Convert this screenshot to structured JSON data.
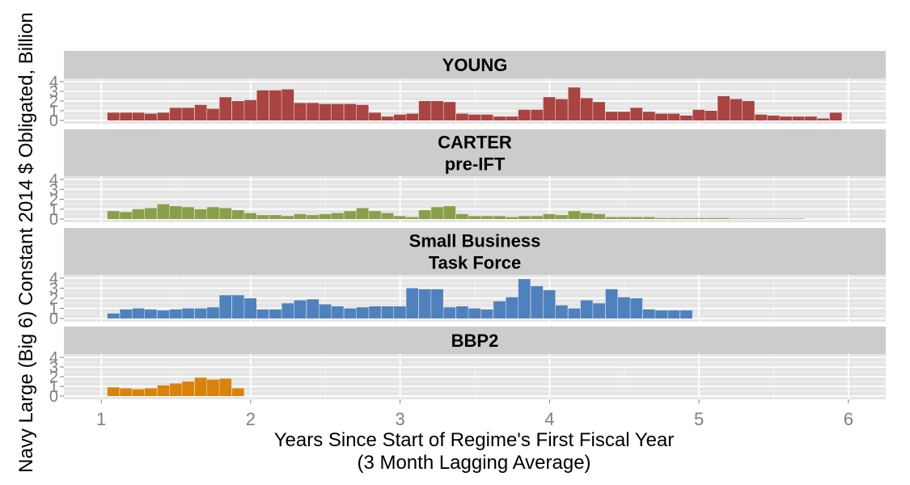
{
  "chart_data": {
    "type": "bar",
    "xlabel": "Years Since Start of Regime's First Fiscal Year",
    "xlabel_line2": "(3 Month Lagging Average)",
    "ylabel": "Navy Large (Big 6) Constant 2014 $ Obligated, Billion",
    "xlim": [
      0.75,
      6.25
    ],
    "ylim": [
      0,
      4
    ],
    "x_ticks": [
      1,
      2,
      3,
      4,
      5,
      6
    ],
    "y_ticks": [
      0,
      1,
      2,
      3,
      4
    ],
    "grid": true,
    "bin_width": 0.0833,
    "panels": [
      {
        "label": [
          "YOUNG"
        ],
        "color": "#a94442",
        "x": [
          1.083,
          1.167,
          1.25,
          1.333,
          1.417,
          1.5,
          1.583,
          1.667,
          1.75,
          1.833,
          1.917,
          2.0,
          2.083,
          2.167,
          2.25,
          2.333,
          2.417,
          2.5,
          2.583,
          2.667,
          2.75,
          2.833,
          2.917,
          3.0,
          3.083,
          3.167,
          3.25,
          3.333,
          3.417,
          3.5,
          3.583,
          3.667,
          3.75,
          3.833,
          3.917,
          4.0,
          4.083,
          4.167,
          4.25,
          4.333,
          4.417,
          4.5,
          4.583,
          4.667,
          4.75,
          4.833,
          4.917,
          5.0,
          5.083,
          5.167,
          5.25,
          5.333,
          5.417,
          5.5,
          5.583,
          5.667,
          5.75,
          5.833,
          5.917
        ],
        "values": [
          0.8,
          0.8,
          0.8,
          0.7,
          0.8,
          1.3,
          1.3,
          1.6,
          1.2,
          2.4,
          2.0,
          2.1,
          3.1,
          3.1,
          3.2,
          1.8,
          1.8,
          1.7,
          1.7,
          1.7,
          1.6,
          0.8,
          0.4,
          0.6,
          0.7,
          2.0,
          2.0,
          1.9,
          0.7,
          0.6,
          0.6,
          0.4,
          0.4,
          1.1,
          1.1,
          2.4,
          2.2,
          3.4,
          2.3,
          1.9,
          0.9,
          0.9,
          1.3,
          0.9,
          0.7,
          0.7,
          0.5,
          1.1,
          1.0,
          2.5,
          2.2,
          2.0,
          0.6,
          0.5,
          0.4,
          0.4,
          0.4,
          0.2,
          0.8
        ]
      },
      {
        "label": [
          "CARTER",
          "pre-IFT"
        ],
        "color": "#88a04a",
        "x": [
          1.083,
          1.167,
          1.25,
          1.333,
          1.417,
          1.5,
          1.583,
          1.667,
          1.75,
          1.833,
          1.917,
          2.0,
          2.083,
          2.167,
          2.25,
          2.333,
          2.417,
          2.5,
          2.583,
          2.667,
          2.75,
          2.833,
          2.917,
          3.0,
          3.083,
          3.167,
          3.25,
          3.333,
          3.417,
          3.5,
          3.583,
          3.667,
          3.75,
          3.833,
          3.917,
          4.0,
          4.083,
          4.167,
          4.25,
          4.333,
          4.417,
          4.5,
          4.583,
          4.667,
          4.75,
          4.833,
          4.917,
          5.0,
          5.083,
          5.167,
          5.25,
          5.333,
          5.417,
          5.5,
          5.583,
          5.667
        ],
        "values": [
          0.8,
          0.7,
          1.0,
          1.1,
          1.5,
          1.3,
          1.2,
          1.0,
          1.2,
          1.1,
          0.9,
          0.6,
          0.4,
          0.4,
          0.3,
          0.5,
          0.4,
          0.5,
          0.6,
          0.8,
          1.1,
          0.8,
          0.6,
          0.3,
          0.2,
          0.9,
          1.2,
          1.3,
          0.5,
          0.3,
          0.3,
          0.3,
          0.2,
          0.3,
          0.3,
          0.5,
          0.4,
          0.8,
          0.6,
          0.5,
          0.2,
          0.2,
          0.2,
          0.2,
          0.1,
          0.1,
          0.1,
          0.1,
          0.1,
          0.1,
          0.05,
          0.05,
          0.05,
          0.05,
          0.05,
          0.05
        ]
      },
      {
        "label": [
          "Small Business",
          "Task Force"
        ],
        "color": "#4f81bd",
        "x": [
          1.083,
          1.167,
          1.25,
          1.333,
          1.417,
          1.5,
          1.583,
          1.667,
          1.75,
          1.833,
          1.917,
          2.0,
          2.083,
          2.167,
          2.25,
          2.333,
          2.417,
          2.5,
          2.583,
          2.667,
          2.75,
          2.833,
          2.917,
          3.0,
          3.083,
          3.167,
          3.25,
          3.333,
          3.417,
          3.5,
          3.583,
          3.667,
          3.75,
          3.833,
          3.917,
          4.0,
          4.083,
          4.167,
          4.25,
          4.333,
          4.417,
          4.5,
          4.583,
          4.667,
          4.75,
          4.833,
          4.917
        ],
        "values": [
          0.5,
          0.9,
          1.0,
          0.9,
          0.8,
          0.9,
          1.0,
          1.0,
          1.1,
          2.3,
          2.3,
          2.0,
          0.9,
          0.9,
          1.5,
          1.8,
          1.9,
          1.4,
          1.2,
          1.0,
          1.1,
          1.2,
          1.2,
          1.2,
          3.0,
          2.9,
          2.9,
          1.1,
          1.2,
          1.0,
          0.9,
          1.7,
          2.1,
          3.9,
          3.2,
          2.8,
          1.3,
          1.0,
          1.8,
          1.5,
          2.9,
          2.1,
          2.0,
          0.9,
          0.8,
          0.8,
          0.8
        ]
      },
      {
        "label": [
          "BBP2"
        ],
        "color": "#d9830b",
        "x": [
          1.083,
          1.167,
          1.25,
          1.333,
          1.417,
          1.5,
          1.583,
          1.667,
          1.75,
          1.833,
          1.917
        ],
        "values": [
          0.9,
          0.8,
          0.7,
          0.8,
          1.1,
          1.3,
          1.5,
          1.9,
          1.7,
          1.8,
          0.8
        ]
      }
    ]
  }
}
